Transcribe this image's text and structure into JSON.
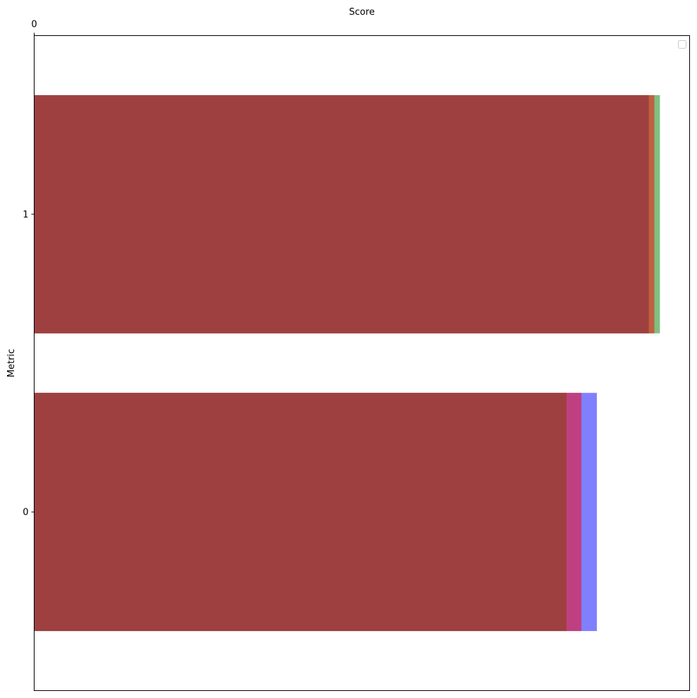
{
  "chart_data": {
    "type": "bar",
    "orientation": "horizontal",
    "title": "",
    "xlabel": "Score",
    "ylabel": "Metric",
    "x_axis_position": "top",
    "x_ticks": [
      "0"
    ],
    "categories": [
      "0",
      "1"
    ],
    "xlim": [
      0,
      1.06
    ],
    "grid": false,
    "legend": {
      "placement": "top-right",
      "entries": []
    },
    "series": [
      {
        "color": "#8080ff",
        "values": [
          0.91,
          null
        ]
      },
      {
        "color": "#bf4080",
        "values": [
          0.885,
          null
        ]
      },
      {
        "color": "#80bf80",
        "values": [
          null,
          1.012
        ]
      },
      {
        "color": "#bf6040",
        "values": [
          null,
          1.003
        ]
      },
      {
        "color": "#9f4040",
        "values": [
          0.861,
          0.994
        ]
      }
    ]
  }
}
